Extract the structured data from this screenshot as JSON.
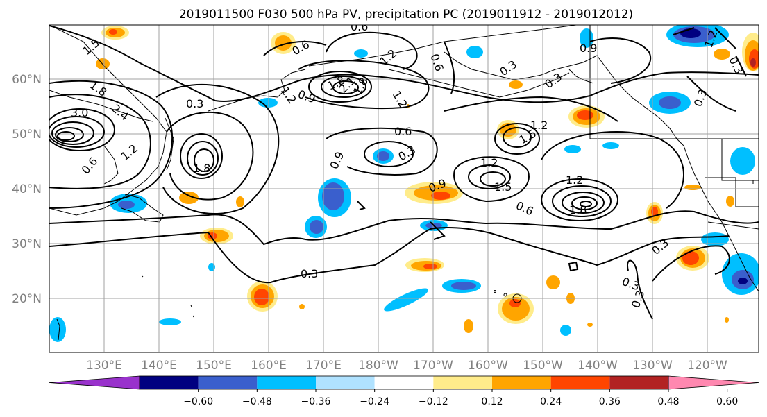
{
  "title": "2019011500 F030 500 hPa PV, precipitation PC (2019011912 - 2019012012)",
  "map": {
    "lat_labels": [
      "60°N",
      "50°N",
      "40°N",
      "30°N",
      "20°N"
    ],
    "lon_labels": [
      "130°E",
      "140°E",
      "150°E",
      "160°E",
      "170°E",
      "180°W",
      "170°W",
      "160°W",
      "150°W",
      "140°W",
      "130°W",
      "120°W"
    ],
    "contour_color": "#000000",
    "grid_color": "#a0a0a0",
    "contour_labels": [
      "0.6",
      "1.5",
      "0.6",
      "1.2",
      "0.6",
      "0.9",
      "0.3",
      "0.3",
      "1.8",
      "2.1",
      "1.8",
      "1.2",
      "1.2",
      "0.9",
      "0.3",
      "1.8",
      "3.0",
      "2.4",
      "0.3",
      "1.2",
      "0.6",
      "1.8",
      "0.6",
      "1.2",
      "0.9",
      "1.5",
      "0.3",
      "1.2",
      "0.9",
      "1.2",
      "1.5",
      "0.6",
      "1.2",
      "1.8",
      "0.3",
      "0.3",
      "0.3",
      "0.3",
      "0.3"
    ]
  },
  "colorbar": {
    "ticks": [
      "−0.60",
      "−0.48",
      "−0.36",
      "−0.24",
      "−0.12",
      "0.12",
      "0.24",
      "0.36",
      "0.48",
      "0.60"
    ],
    "colors": [
      "#9932cc",
      "#000080",
      "#3a5fcd",
      "#00bfff",
      "#b0e2ff",
      "#ffffff",
      "#ffec8b",
      "#ffa500",
      "#ff4500",
      "#b22222",
      "#ff88b0"
    ]
  }
}
